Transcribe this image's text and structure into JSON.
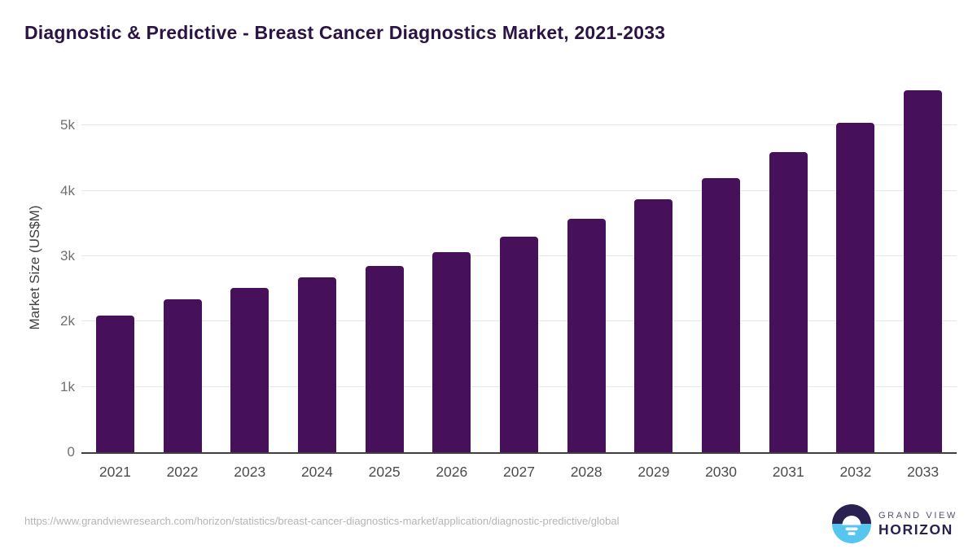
{
  "title": "Diagnostic & Predictive - Breast Cancer Diagnostics Market, 2021-2033",
  "chart_data": {
    "type": "bar",
    "title": "Diagnostic & Predictive - Breast Cancer Diagnostics Market, 2021-2033",
    "categories": [
      "2021",
      "2022",
      "2023",
      "2024",
      "2025",
      "2026",
      "2027",
      "2028",
      "2029",
      "2030",
      "2031",
      "2032",
      "2033"
    ],
    "values": [
      2090,
      2344,
      2513,
      2674,
      2853,
      3063,
      3293,
      3566,
      3872,
      4200,
      4590,
      5035,
      5540
    ],
    "xlabel": "",
    "ylabel": "Market Size (US$M)",
    "ylim": [
      0,
      5675
    ],
    "yticks": [
      {
        "label": "0",
        "value": 0
      },
      {
        "label": "1k",
        "value": 1000
      },
      {
        "label": "2k",
        "value": 2000
      },
      {
        "label": "3k",
        "value": 3000
      },
      {
        "label": "4k",
        "value": 4000
      },
      {
        "label": "5k",
        "value": 5000
      }
    ],
    "grid": true,
    "legend": false,
    "bar_color": "#47105a"
  },
  "footer": {
    "source_url": "https://www.grandviewresearch.com/horizon/statistics/breast-cancer-diagnostics-market/application/diagnostic-predictive/global",
    "logo": {
      "line1": "GRAND VIEW",
      "line2": "HORIZON"
    }
  },
  "colors": {
    "title_purple": "#2b1444",
    "bar_purple": "#47105a",
    "logo_purple": "#2b2150",
    "logo_blue": "#56c6f0",
    "gridline": "#e7e7e7",
    "axis_line": "#3f3f3f"
  }
}
